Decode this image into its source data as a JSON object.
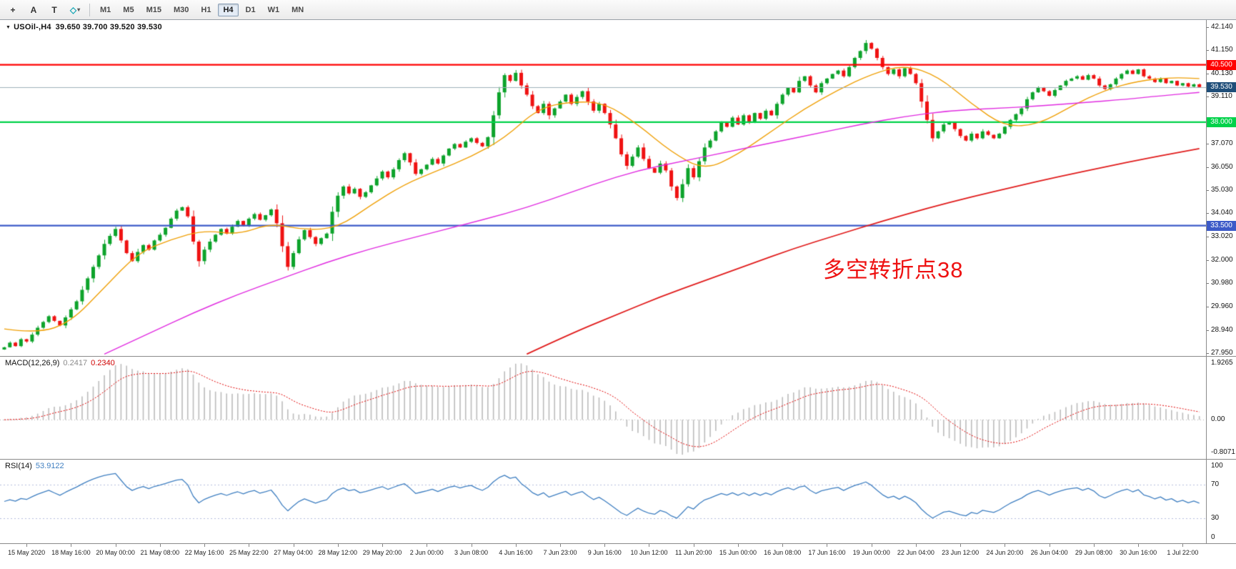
{
  "toolbar": {
    "tools": [
      {
        "id": "crosshair",
        "glyph": "+"
      },
      {
        "id": "text",
        "glyph": "A"
      },
      {
        "id": "text-label",
        "glyph": "T"
      },
      {
        "id": "shapes",
        "glyph": "◇",
        "color": "#12a5b4",
        "dropdown": true
      }
    ],
    "dropdown_glyph": "▾",
    "timeframes": [
      "M1",
      "M5",
      "M15",
      "M30",
      "H1",
      "H4",
      "D1",
      "W1",
      "MN"
    ],
    "active_timeframe": "H4"
  },
  "chart": {
    "menu_icon": "▼",
    "title": "USOil-,H4",
    "ohlc_text": "39.650 39.700 39.520 39.530"
  },
  "annotation": {
    "text": "多空转折点38",
    "color": "#ee1111"
  },
  "macd_panel": {
    "name": "MACD(12,26,9)",
    "value_main": "0.2417",
    "value_signal": "0.2340"
  },
  "rsi_panel": {
    "name": "RSI(14)",
    "value": "53.9122"
  },
  "current_price": {
    "value": 39.53,
    "label": "39.530"
  },
  "colors": {
    "candle_up": "#0da32b",
    "candle_down": "#ef1212",
    "macd_hist": "#bcbcbc",
    "macd_signal": "#e00000",
    "macd_zero_line": "#b0b0b0",
    "rsi_line": "#3f7fc1",
    "rsi_levels": "#b4bedd",
    "current_line": "#9fb0ba",
    "current_badge_bg": "#1f4e79"
  },
  "chart_data": {
    "type": "candlestick",
    "symbol": "USOil-",
    "timeframe": "H4",
    "price_range": [
      27.82,
      42.45
    ],
    "first_open": 28.1,
    "closes": [
      28.2,
      28.4,
      28.25,
      28.55,
      28.45,
      28.75,
      29.05,
      29.3,
      29.55,
      29.35,
      29.15,
      29.5,
      29.85,
      30.2,
      30.7,
      31.2,
      31.7,
      32.2,
      32.7,
      33.05,
      33.35,
      32.85,
      32.3,
      31.95,
      32.35,
      32.65,
      32.45,
      32.85,
      33.1,
      33.4,
      33.8,
      34.15,
      34.3,
      33.9,
      32.8,
      31.95,
      32.45,
      32.8,
      33.1,
      33.35,
      33.15,
      33.45,
      33.7,
      33.5,
      33.8,
      34.0,
      33.75,
      33.95,
      34.2,
      33.6,
      32.6,
      31.7,
      32.3,
      32.9,
      33.3,
      33.0,
      32.7,
      32.95,
      33.15,
      34.1,
      34.8,
      35.2,
      34.9,
      35.1,
      34.75,
      34.95,
      35.25,
      35.55,
      35.85,
      35.6,
      35.95,
      36.35,
      36.65,
      36.25,
      35.75,
      35.95,
      36.15,
      36.4,
      36.2,
      36.55,
      36.85,
      37.05,
      36.9,
      37.15,
      37.3,
      37.1,
      36.95,
      37.35,
      38.3,
      39.3,
      40.05,
      39.8,
      40.15,
      39.6,
      39.2,
      38.7,
      38.4,
      38.8,
      38.3,
      38.6,
      38.9,
      39.2,
      38.8,
      39.1,
      39.35,
      38.9,
      38.5,
      38.8,
      38.4,
      37.9,
      37.3,
      36.6,
      36.1,
      36.5,
      36.9,
      36.4,
      36.0,
      35.8,
      36.2,
      35.9,
      35.2,
      34.7,
      35.3,
      36.0,
      35.6,
      36.3,
      36.9,
      37.2,
      37.6,
      38.0,
      37.8,
      38.2,
      37.9,
      38.3,
      38.0,
      38.4,
      38.15,
      38.5,
      38.3,
      38.8,
      39.2,
      39.5,
      39.3,
      39.8,
      40.0,
      39.6,
      39.3,
      39.7,
      39.9,
      40.1,
      40.25,
      40.0,
      40.4,
      40.8,
      41.1,
      41.45,
      41.2,
      40.8,
      40.4,
      40.1,
      40.3,
      40.0,
      40.35,
      40.1,
      39.7,
      38.9,
      38.1,
      37.3,
      37.6,
      37.9,
      38.0,
      37.7,
      37.4,
      37.2,
      37.5,
      37.3,
      37.6,
      37.45,
      37.3,
      37.5,
      37.8,
      38.1,
      38.35,
      38.6,
      39.0,
      39.3,
      39.5,
      39.35,
      39.15,
      39.4,
      39.6,
      39.8,
      39.9,
      40.0,
      39.85,
      40.05,
      39.9,
      39.6,
      39.45,
      39.65,
      39.9,
      40.1,
      40.25,
      40.1,
      40.3,
      40.0,
      39.9,
      39.75,
      39.9,
      39.7,
      39.8,
      39.6,
      39.7,
      39.55,
      39.65,
      39.53
    ],
    "horizontal_levels": [
      {
        "price": 40.5,
        "label": "40.500",
        "color": "#ff0000"
      },
      {
        "price": 38.0,
        "label": "38.000",
        "color": "#00d24a"
      },
      {
        "price": 33.5,
        "label": "33.500",
        "color": "#3c5ac8"
      }
    ],
    "moving_averages": [
      {
        "name": "ma-fast",
        "color": "#efa008",
        "width": 1.4,
        "points": [
          [
            0,
            29.0
          ],
          [
            6,
            28.8
          ],
          [
            12,
            29.3
          ],
          [
            18,
            30.8
          ],
          [
            24,
            32.3
          ],
          [
            30,
            32.9
          ],
          [
            36,
            33.3
          ],
          [
            42,
            33.1
          ],
          [
            48,
            33.6
          ],
          [
            54,
            33.3
          ],
          [
            60,
            33.4
          ],
          [
            66,
            34.4
          ],
          [
            72,
            35.3
          ],
          [
            78,
            35.9
          ],
          [
            84,
            36.5
          ],
          [
            90,
            37.3
          ],
          [
            96,
            38.6
          ],
          [
            102,
            38.9
          ],
          [
            108,
            38.85
          ],
          [
            114,
            37.9
          ],
          [
            120,
            36.7
          ],
          [
            126,
            35.9
          ],
          [
            132,
            36.6
          ],
          [
            138,
            37.6
          ],
          [
            144,
            38.6
          ],
          [
            150,
            39.4
          ],
          [
            156,
            40.1
          ],
          [
            162,
            40.5
          ],
          [
            168,
            40.0
          ],
          [
            174,
            38.8
          ],
          [
            180,
            37.8
          ],
          [
            186,
            37.9
          ],
          [
            192,
            38.7
          ],
          [
            198,
            39.4
          ],
          [
            204,
            39.8
          ],
          [
            210,
            39.95
          ],
          [
            215,
            39.9
          ]
        ]
      },
      {
        "name": "ma-mid",
        "color": "#e02ce0",
        "width": 1.4,
        "points": [
          [
            18,
            27.9
          ],
          [
            26,
            28.8
          ],
          [
            34,
            29.7
          ],
          [
            42,
            30.5
          ],
          [
            50,
            31.2
          ],
          [
            58,
            31.9
          ],
          [
            66,
            32.5
          ],
          [
            74,
            33.0
          ],
          [
            82,
            33.5
          ],
          [
            90,
            34.0
          ],
          [
            98,
            34.6
          ],
          [
            106,
            35.3
          ],
          [
            114,
            35.9
          ],
          [
            122,
            36.3
          ],
          [
            130,
            36.7
          ],
          [
            138,
            37.1
          ],
          [
            146,
            37.5
          ],
          [
            154,
            37.9
          ],
          [
            162,
            38.25
          ],
          [
            170,
            38.5
          ],
          [
            178,
            38.6
          ],
          [
            186,
            38.7
          ],
          [
            194,
            38.85
          ],
          [
            202,
            39.0
          ],
          [
            208,
            39.15
          ],
          [
            215,
            39.3
          ]
        ]
      },
      {
        "name": "ma-slow",
        "color": "#e01c1c",
        "width": 1.8,
        "points": [
          [
            94,
            27.9
          ],
          [
            102,
            28.8
          ],
          [
            110,
            29.6
          ],
          [
            118,
            30.4
          ],
          [
            126,
            31.1
          ],
          [
            134,
            31.8
          ],
          [
            142,
            32.5
          ],
          [
            150,
            33.1
          ],
          [
            158,
            33.7
          ],
          [
            166,
            34.25
          ],
          [
            174,
            34.75
          ],
          [
            182,
            35.2
          ],
          [
            190,
            35.65
          ],
          [
            198,
            36.05
          ],
          [
            206,
            36.45
          ],
          [
            215,
            36.85
          ]
        ]
      }
    ],
    "price_ticks": [
      {
        "p": 42.14,
        "label": "42.140"
      },
      {
        "p": 41.15,
        "label": "41.150"
      },
      {
        "p": 40.13,
        "label": "40.130"
      },
      {
        "p": 39.11,
        "label": "39.110"
      },
      {
        "p": 37.07,
        "label": "37.070"
      },
      {
        "p": 36.05,
        "label": "36.050"
      },
      {
        "p": 35.03,
        "label": "35.030"
      },
      {
        "p": 34.04,
        "label": "34.040"
      },
      {
        "p": 33.02,
        "label": "33.020"
      },
      {
        "p": 32.0,
        "label": "32.000"
      },
      {
        "p": 30.98,
        "label": "30.980"
      },
      {
        "p": 29.96,
        "label": "29.960"
      },
      {
        "p": 28.94,
        "label": "28.940"
      },
      {
        "p": 27.95,
        "label": "27.950"
      }
    ],
    "time_labels": [
      "15 May 2020",
      "18 May 16:00",
      "20 May 00:00",
      "21 May 08:00",
      "22 May 16:00",
      "25 May 22:00",
      "27 May 04:00",
      "28 May 12:00",
      "29 May 20:00",
      "2 Jun 00:00",
      "3 Jun 08:00",
      "4 Jun 16:00",
      "7 Jun 23:00",
      "9 Jun 16:00",
      "10 Jun 12:00",
      "11 Jun 20:00",
      "15 Jun 00:00",
      "16 Jun 08:00",
      "17 Jun 16:00",
      "19 Jun 00:00",
      "22 Jun 04:00",
      "23 Jun 12:00",
      "24 Jun 20:00",
      "26 Jun 04:00",
      "29 Jun 08:00",
      "30 Jun 16:00",
      "1 Jul 22:00"
    ],
    "indicators": {
      "macd": {
        "fast": 12,
        "slow": 26,
        "signal": 9,
        "scale_labels": {
          "max": "1.9265",
          "zero": "0.00",
          "min": "-0.8071"
        }
      },
      "rsi": {
        "period": 14,
        "levels": [
          70,
          30
        ],
        "scale_values": [
          100,
          70,
          30,
          0
        ],
        "scale_labels": [
          "100",
          "70",
          "30",
          "0"
        ]
      }
    }
  }
}
